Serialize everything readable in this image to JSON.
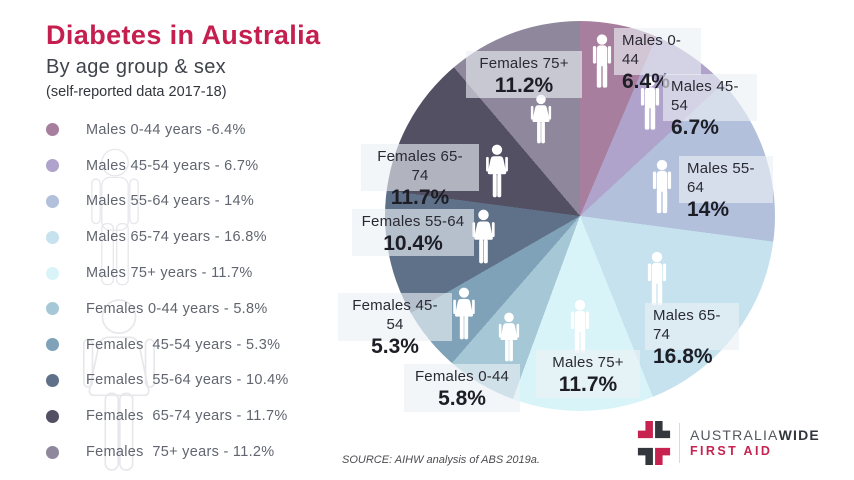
{
  "header": {
    "title": "Diabetes in Australia",
    "subtitle": "By age group & sex",
    "note": "(self-reported data 2017-18)"
  },
  "chart_data": {
    "type": "pie",
    "title": "Diabetes in Australia by age group & sex (self-reported data 2017-18)",
    "unit": "%",
    "start_angle_deg": 0,
    "direction": "clockwise",
    "legend_position": "left",
    "slices": [
      {
        "label": "Males 0-44",
        "value": 6.4,
        "pct_label": "6.4%",
        "legend_label": "Males 0-44 years -6.4%",
        "color": "#a87e9e",
        "sex": "male"
      },
      {
        "label": "Males 45-54",
        "value": 6.7,
        "pct_label": "6.7%",
        "legend_label": "Males 45-54 years - 6.7%",
        "color": "#afa3cb",
        "sex": "male"
      },
      {
        "label": "Males 55-64",
        "value": 14,
        "pct_label": "14%",
        "legend_label": "Males 55-64 years - 14%",
        "color": "#b2c0dc",
        "sex": "male"
      },
      {
        "label": "Males 65-74",
        "value": 16.8,
        "pct_label": "16.8%",
        "legend_label": "Males 65-74 years - 16.8%",
        "color": "#c6e2ef",
        "sex": "male"
      },
      {
        "label": "Males 75+",
        "value": 11.7,
        "pct_label": "11.7%",
        "legend_label": "Males 75+ years - 11.7%",
        "color": "#d9f4f8",
        "sex": "male"
      },
      {
        "label": "Females 0-44",
        "value": 5.8,
        "pct_label": "5.8%",
        "legend_label": "Females 0-44 years - 5.8%",
        "color": "#a6c8d6",
        "sex": "female"
      },
      {
        "label": "Females 45-54",
        "value": 5.3,
        "pct_label": "5.3%",
        "legend_label": "Females  45-54 years - 5.3%",
        "color": "#7fa2b8",
        "sex": "female"
      },
      {
        "label": "Females 55-64",
        "value": 10.4,
        "pct_label": "10.4%",
        "legend_label": "Females  55-64 years - 10.4%",
        "color": "#5f7189",
        "sex": "female"
      },
      {
        "label": "Females 65-74",
        "value": 11.7,
        "pct_label": "11.7%",
        "legend_label": "Females  65-74 years - 11.7%",
        "color": "#535064",
        "sex": "female"
      },
      {
        "label": "Females 75+",
        "value": 11.2,
        "pct_label": "11.2%",
        "legend_label": "Females  75+ years - 11.2%",
        "color": "#8f879b",
        "sex": "female"
      }
    ],
    "source": "SOURCE: AIHW analysis of ABS 2019a."
  },
  "footer": {
    "source": "SOURCE: AIHW analysis of ABS 2019a."
  },
  "logo": {
    "brand_first": "AUSTRALIA",
    "brand_second": "WIDE",
    "tagline": "FIRST AID",
    "crimson": "#c72350",
    "dark": "#33373d"
  }
}
